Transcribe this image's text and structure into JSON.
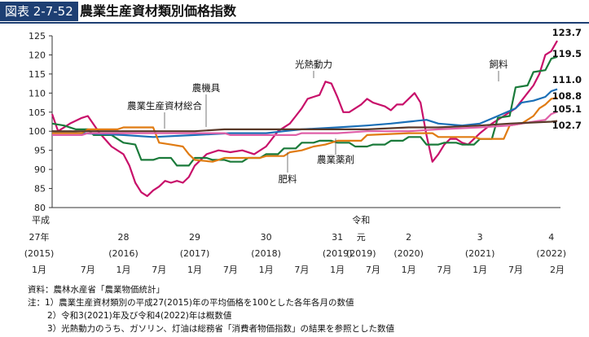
{
  "figure": {
    "label": "図表 2-7-52",
    "title": "農業生産資材類別価格指数"
  },
  "notes": {
    "source": "資料：農林水産省「農業物価統計」",
    "note1": "注：1）農業生産資材類別の平成27(2015)年の平均価格を100とした各年各月の数値",
    "note2": "2）令和3(2021)年及び令和4(2022)年は概数値",
    "note3": "3）光熱動力のうち、ガソリン、灯油は総務省「消費者物価指数」の結果を参照とした数値"
  },
  "chart_data": {
    "type": "line",
    "title": "農業生産資材類別価格指数",
    "xlabel": "",
    "ylabel": "",
    "ylim": [
      80,
      125
    ],
    "yticks": [
      80,
      85,
      90,
      95,
      100,
      105,
      110,
      115,
      120,
      125
    ],
    "grid": false,
    "x_period": [
      "2015-01",
      "2022-02"
    ],
    "x_axis_rows": {
      "era_labels": [
        {
          "x": "2015-01",
          "text": "平成"
        },
        {
          "x": "2019-05",
          "text": "令和"
        }
      ],
      "year_labels": [
        {
          "x": "2015-01",
          "text": "27年"
        },
        {
          "x": "2016-01",
          "text": "28"
        },
        {
          "x": "2017-01",
          "text": "29"
        },
        {
          "x": "2018-01",
          "text": "30"
        },
        {
          "x": "2019-01",
          "text": "31"
        },
        {
          "x": "2019-05",
          "text": "元"
        },
        {
          "x": "2020-01",
          "text": "2"
        },
        {
          "x": "2021-01",
          "text": "3"
        },
        {
          "x": "2022-01",
          "text": "4"
        }
      ],
      "western_labels": [
        {
          "x": "2015-01",
          "text": "(2015)"
        },
        {
          "x": "2016-01",
          "text": "(2016)"
        },
        {
          "x": "2017-01",
          "text": "(2017)"
        },
        {
          "x": "2018-01",
          "text": "(2018)"
        },
        {
          "x": "2019-01",
          "text": "(2019)"
        },
        {
          "x": "2019-05",
          "text": "(2019)"
        },
        {
          "x": "2020-01",
          "text": "(2020)"
        },
        {
          "x": "2021-01",
          "text": "(2021)"
        },
        {
          "x": "2022-01",
          "text": "(2022)"
        }
      ],
      "month_labels": [
        {
          "x": "2015-01",
          "text": "1月"
        },
        {
          "x": "2015-07",
          "text": "7月"
        },
        {
          "x": "2016-01",
          "text": "1月"
        },
        {
          "x": "2016-07",
          "text": "7月"
        },
        {
          "x": "2017-01",
          "text": "1月"
        },
        {
          "x": "2017-07",
          "text": "7月"
        },
        {
          "x": "2018-01",
          "text": "1月"
        },
        {
          "x": "2018-07",
          "text": "7月"
        },
        {
          "x": "2019-01",
          "text": "1月"
        },
        {
          "x": "2019-07",
          "text": "7月"
        },
        {
          "x": "2020-01",
          "text": "1月"
        },
        {
          "x": "2020-07",
          "text": "7月"
        },
        {
          "x": "2021-01",
          "text": "1月"
        },
        {
          "x": "2021-07",
          "text": "7月"
        },
        {
          "x": "2022-02",
          "text": "2月"
        }
      ]
    },
    "series": [
      {
        "name": "光熱動力",
        "color": "#c8106a",
        "end_label": "123.7",
        "points": [
          [
            "2015-01",
            104.5
          ],
          [
            "2015-02",
            100
          ],
          [
            "2015-04",
            102
          ],
          [
            "2015-06",
            103.5
          ],
          [
            "2015-07",
            104
          ],
          [
            "2015-09",
            99.5
          ],
          [
            "2015-11",
            96
          ],
          [
            "2016-01",
            94
          ],
          [
            "2016-02",
            91
          ],
          [
            "2016-03",
            86.5
          ],
          [
            "2016-04",
            84
          ],
          [
            "2016-05",
            83
          ],
          [
            "2016-06",
            84.5
          ],
          [
            "2016-07",
            85.5
          ],
          [
            "2016-08",
            87
          ],
          [
            "2016-09",
            86.5
          ],
          [
            "2016-10",
            87
          ],
          [
            "2016-11",
            86.5
          ],
          [
            "2016-12",
            88
          ],
          [
            "2017-01",
            91
          ],
          [
            "2017-03",
            94
          ],
          [
            "2017-05",
            95
          ],
          [
            "2017-07",
            94.5
          ],
          [
            "2017-09",
            95
          ],
          [
            "2017-11",
            94
          ],
          [
            "2018-01",
            96
          ],
          [
            "2018-03",
            100
          ],
          [
            "2018-05",
            102
          ],
          [
            "2018-06",
            104
          ],
          [
            "2018-07",
            106
          ],
          [
            "2018-08",
            108.5
          ],
          [
            "2018-09",
            109
          ],
          [
            "2018-10",
            109.5
          ],
          [
            "2018-11",
            113
          ],
          [
            "2018-12",
            112.5
          ],
          [
            "2019-01",
            109
          ],
          [
            "2019-02",
            105
          ],
          [
            "2019-03",
            105
          ],
          [
            "2019-05",
            107
          ],
          [
            "2019-06",
            108.5
          ],
          [
            "2019-07",
            107.5
          ],
          [
            "2019-09",
            106.5
          ],
          [
            "2019-10",
            105.5
          ],
          [
            "2019-11",
            107
          ],
          [
            "2019-12",
            107
          ],
          [
            "2020-01",
            108.5
          ],
          [
            "2020-02",
            110
          ],
          [
            "2020-03",
            107.5
          ],
          [
            "2020-04",
            99
          ],
          [
            "2020-05",
            92
          ],
          [
            "2020-06",
            94
          ],
          [
            "2020-07",
            96.5
          ],
          [
            "2020-08",
            98
          ],
          [
            "2020-09",
            98
          ],
          [
            "2020-10",
            97
          ],
          [
            "2020-11",
            96.5
          ],
          [
            "2020-12",
            98
          ],
          [
            "2021-01",
            99.5
          ],
          [
            "2021-03",
            102
          ],
          [
            "2021-05",
            104
          ],
          [
            "2021-07",
            106
          ],
          [
            "2021-08",
            108
          ],
          [
            "2021-09",
            110
          ],
          [
            "2021-10",
            112
          ],
          [
            "2021-11",
            115
          ],
          [
            "2021-12",
            120
          ],
          [
            "2022-01",
            121
          ],
          [
            "2022-02",
            123.7
          ]
        ]
      },
      {
        "name": "飼料",
        "color": "#1a7a3a",
        "end_label": "119.5",
        "points": [
          [
            "2015-01",
            102
          ],
          [
            "2015-03",
            101.5
          ],
          [
            "2015-05",
            100.5
          ],
          [
            "2015-07",
            100.5
          ],
          [
            "2015-08",
            99
          ],
          [
            "2015-11",
            99
          ],
          [
            "2016-01",
            97
          ],
          [
            "2016-03",
            96.5
          ],
          [
            "2016-04",
            92.5
          ],
          [
            "2016-06",
            92.5
          ],
          [
            "2016-07",
            93
          ],
          [
            "2016-09",
            93
          ],
          [
            "2016-10",
            91
          ],
          [
            "2016-12",
            91
          ],
          [
            "2017-01",
            93
          ],
          [
            "2017-03",
            93
          ],
          [
            "2017-04",
            92.5
          ],
          [
            "2017-06",
            92.5
          ],
          [
            "2017-07",
            92
          ],
          [
            "2017-09",
            92
          ],
          [
            "2017-10",
            93
          ],
          [
            "2017-12",
            93
          ],
          [
            "2018-01",
            94
          ],
          [
            "2018-03",
            94
          ],
          [
            "2018-04",
            95.5
          ],
          [
            "2018-06",
            95.5
          ],
          [
            "2018-07",
            97
          ],
          [
            "2018-09",
            97
          ],
          [
            "2018-10",
            97.5
          ],
          [
            "2018-12",
            97.5
          ],
          [
            "2019-01",
            97
          ],
          [
            "2019-03",
            97
          ],
          [
            "2019-04",
            96
          ],
          [
            "2019-06",
            96
          ],
          [
            "2019-07",
            96.5
          ],
          [
            "2019-09",
            96.5
          ],
          [
            "2019-10",
            97.5
          ],
          [
            "2019-12",
            97.5
          ],
          [
            "2020-01",
            98.5
          ],
          [
            "2020-03",
            98.5
          ],
          [
            "2020-04",
            96.5
          ],
          [
            "2020-06",
            96.5
          ],
          [
            "2020-07",
            97
          ],
          [
            "2020-09",
            97
          ],
          [
            "2020-10",
            96.5
          ],
          [
            "2020-12",
            96.5
          ],
          [
            "2021-01",
            98
          ],
          [
            "2021-03",
            98
          ],
          [
            "2021-04",
            103.5
          ],
          [
            "2021-06",
            104
          ],
          [
            "2021-07",
            111.5
          ],
          [
            "2021-09",
            112
          ],
          [
            "2021-10",
            115.5
          ],
          [
            "2021-12",
            116
          ],
          [
            "2022-01",
            119
          ],
          [
            "2022-02",
            119.5
          ]
        ]
      },
      {
        "name": "農機具",
        "color": "#1a6fb7",
        "end_label": "111.0",
        "points": [
          [
            "2015-01",
            100
          ],
          [
            "2015-06",
            99.5
          ],
          [
            "2016-01",
            99
          ],
          [
            "2016-06",
            98.5
          ],
          [
            "2017-01",
            99
          ],
          [
            "2017-07",
            99.5
          ],
          [
            "2018-01",
            99.5
          ],
          [
            "2018-04",
            100
          ],
          [
            "2018-07",
            100.5
          ],
          [
            "2019-01",
            101
          ],
          [
            "2019-06",
            101.5
          ],
          [
            "2019-10",
            102
          ],
          [
            "2020-01",
            102.5
          ],
          [
            "2020-04",
            103
          ],
          [
            "2020-06",
            102
          ],
          [
            "2020-10",
            101.5
          ],
          [
            "2021-01",
            102
          ],
          [
            "2021-04",
            104
          ],
          [
            "2021-07",
            106
          ],
          [
            "2021-08",
            107.5
          ],
          [
            "2021-10",
            108
          ],
          [
            "2021-12",
            109
          ],
          [
            "2022-01",
            110.5
          ],
          [
            "2022-02",
            111
          ]
        ]
      },
      {
        "name": "肥料",
        "color": "#e07b12",
        "end_label": "108.8",
        "points": [
          [
            "2015-01",
            99.5
          ],
          [
            "2015-06",
            99.5
          ],
          [
            "2015-07",
            100.5
          ],
          [
            "2015-12",
            100.5
          ],
          [
            "2016-01",
            101
          ],
          [
            "2016-06",
            101
          ],
          [
            "2016-07",
            97
          ],
          [
            "2016-09",
            96.5
          ],
          [
            "2016-11",
            96
          ],
          [
            "2016-12",
            94
          ],
          [
            "2017-01",
            92.5
          ],
          [
            "2017-04",
            92
          ],
          [
            "2017-05",
            92.5
          ],
          [
            "2017-06",
            93
          ],
          [
            "2017-12",
            93
          ],
          [
            "2018-01",
            93.5
          ],
          [
            "2018-04",
            93.5
          ],
          [
            "2018-05",
            94.5
          ],
          [
            "2018-07",
            95
          ],
          [
            "2018-09",
            96
          ],
          [
            "2018-11",
            96.5
          ],
          [
            "2019-01",
            97.5
          ],
          [
            "2019-05",
            97.5
          ],
          [
            "2019-06",
            99
          ],
          [
            "2020-01",
            99.5
          ],
          [
            "2020-05",
            99.5
          ],
          [
            "2020-06",
            98.5
          ],
          [
            "2020-12",
            98.5
          ],
          [
            "2021-01",
            98
          ],
          [
            "2021-05",
            98
          ],
          [
            "2021-06",
            101.5
          ],
          [
            "2021-08",
            102
          ],
          [
            "2021-09",
            103
          ],
          [
            "2021-10",
            104
          ],
          [
            "2021-11",
            106
          ],
          [
            "2021-12",
            107
          ],
          [
            "2022-01",
            108.5
          ],
          [
            "2022-02",
            108.8
          ]
        ]
      },
      {
        "name": "農業薬剤",
        "color": "#e060a8",
        "end_label": "105.1",
        "points": [
          [
            "2015-01",
            99
          ],
          [
            "2015-06",
            99
          ],
          [
            "2015-07",
            99.5
          ],
          [
            "2016-01",
            99.5
          ],
          [
            "2016-06",
            99.5
          ],
          [
            "2017-01",
            99.5
          ],
          [
            "2017-06",
            99.5
          ],
          [
            "2017-07",
            99
          ],
          [
            "2018-01",
            99
          ],
          [
            "2018-06",
            99
          ],
          [
            "2018-07",
            99.5
          ],
          [
            "2019-01",
            99.5
          ],
          [
            "2019-06",
            100
          ],
          [
            "2019-12",
            100
          ],
          [
            "2020-01",
            100
          ],
          [
            "2020-06",
            100.5
          ],
          [
            "2021-01",
            101
          ],
          [
            "2021-06",
            101.5
          ],
          [
            "2021-08",
            102
          ],
          [
            "2021-10",
            102.5
          ],
          [
            "2021-12",
            103
          ],
          [
            "2022-01",
            104.5
          ],
          [
            "2022-02",
            105.1
          ]
        ]
      },
      {
        "name": "農業生産資材総合",
        "color": "#5a3a2a",
        "end_label": "102.7",
        "points": [
          [
            "2015-01",
            100
          ],
          [
            "2015-06",
            100
          ],
          [
            "2016-01",
            100
          ],
          [
            "2016-06",
            100
          ],
          [
            "2017-01",
            100
          ],
          [
            "2017-06",
            100.5
          ],
          [
            "2018-01",
            100.5
          ],
          [
            "2018-06",
            100.5
          ],
          [
            "2019-01",
            100.5
          ],
          [
            "2019-06",
            100.5
          ],
          [
            "2020-01",
            101
          ],
          [
            "2020-06",
            101
          ],
          [
            "2021-01",
            101.5
          ],
          [
            "2021-06",
            102
          ],
          [
            "2022-01",
            102.5
          ],
          [
            "2022-02",
            102.7
          ]
        ]
      }
    ]
  }
}
